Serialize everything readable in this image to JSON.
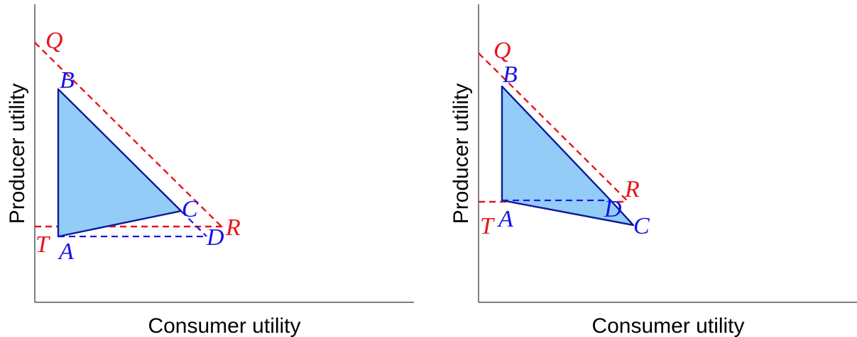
{
  "colors": {
    "region_fill": "#94ccf8",
    "region_stroke": "#0b1a99",
    "blue_label": "#1414e6",
    "red": "#e8121e",
    "axis": "#000000"
  },
  "panels": [
    {
      "xlabel": "Consumer utility",
      "ylabel": "Producer utility",
      "points": {
        "A": "A",
        "B": "B",
        "C": "C",
        "D": "D"
      },
      "red_labels": {
        "Q": "Q",
        "R": "R",
        "T": "T"
      }
    },
    {
      "xlabel": "Consumer utility",
      "ylabel": "Producer utility",
      "points": {
        "A": "A",
        "B": "B",
        "C": "C",
        "D": "D"
      },
      "red_labels": {
        "Q": "Q",
        "R": "R",
        "T": "T"
      }
    }
  ]
}
